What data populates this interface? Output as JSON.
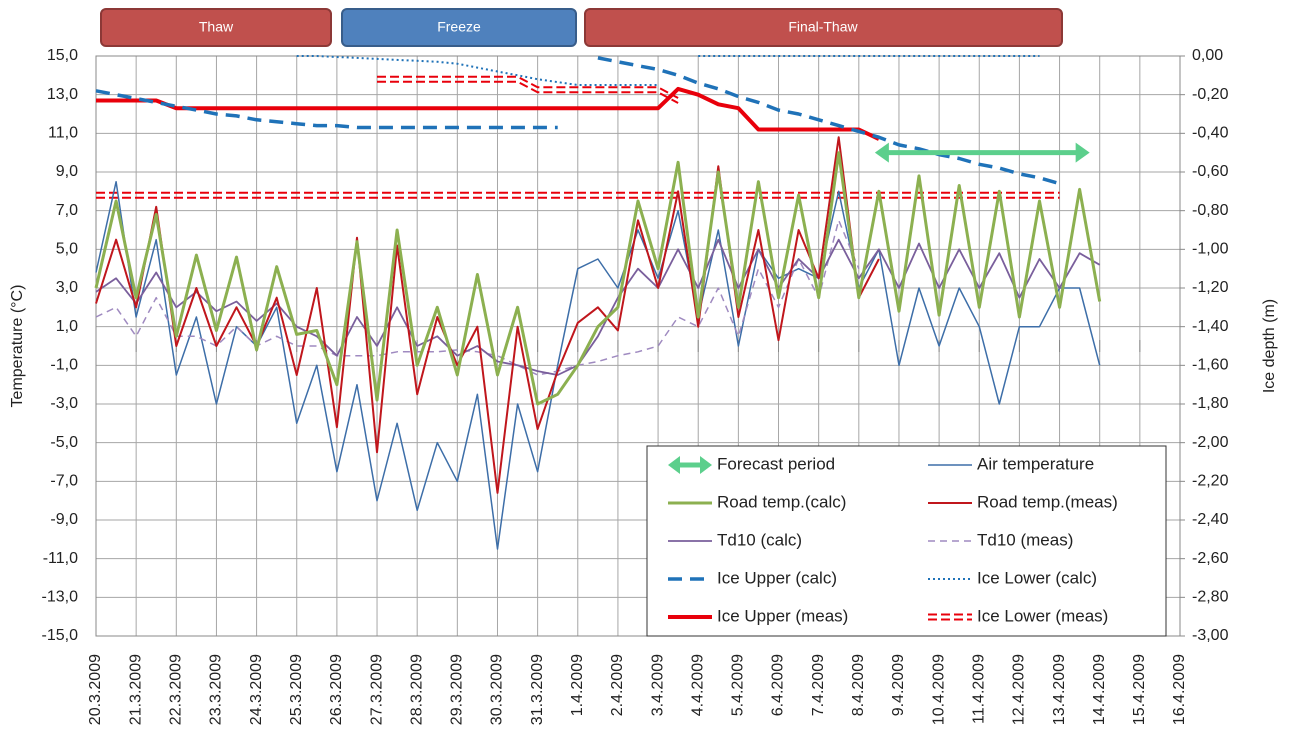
{
  "chart_data": {
    "type": "line",
    "phases": [
      "Thaw",
      "Freeze",
      "Final-Thaw"
    ],
    "y_label": "Temperature (°C)",
    "y2_label": "Ice depth (m)",
    "xlim": [
      39892,
      39919
    ],
    "xticks": [
      {
        "value": 39892,
        "label": "20.3.2009"
      },
      {
        "value": 39893,
        "label": "21.3.2009"
      },
      {
        "value": 39894,
        "label": "22.3.2009"
      },
      {
        "value": 39895,
        "label": "23.3.2009"
      },
      {
        "value": 39896,
        "label": "24.3.2009"
      },
      {
        "value": 39897,
        "label": "25.3.2009"
      },
      {
        "value": 39898,
        "label": "26.3.2009"
      },
      {
        "value": 39899,
        "label": "27.3.2009"
      },
      {
        "value": 39900,
        "label": "28.3.2009"
      },
      {
        "value": 39901,
        "label": "29.3.2009"
      },
      {
        "value": 39902,
        "label": "30.3.2009"
      },
      {
        "value": 39903,
        "label": "31.3.2009"
      },
      {
        "value": 39904,
        "label": "1.4.2009"
      },
      {
        "value": 39905,
        "label": "2.4.2009"
      },
      {
        "value": 39906,
        "label": "3.4.2009"
      },
      {
        "value": 39907,
        "label": "4.4.2009"
      },
      {
        "value": 39908,
        "label": "5.4.2009"
      },
      {
        "value": 39909,
        "label": "6.4.2009"
      },
      {
        "value": 39910,
        "label": "7.4.2009"
      },
      {
        "value": 39911,
        "label": "8.4.2009"
      },
      {
        "value": 39912,
        "label": "9.4.2009"
      },
      {
        "value": 39913,
        "label": "10.4.2009"
      },
      {
        "value": 39914,
        "label": "11.4.2009"
      },
      {
        "value": 39915,
        "label": "12.4.2009"
      },
      {
        "value": 39916,
        "label": "13.4.2009"
      },
      {
        "value": 39917,
        "label": "14.4.2009"
      },
      {
        "value": 39918,
        "label": "15.4.2009"
      },
      {
        "value": 39919,
        "label": "16.4.2009"
      }
    ],
    "ylim": [
      -15,
      15
    ],
    "yticks": [
      {
        "value": -15,
        "label": "-15,0"
      },
      {
        "value": -13,
        "label": "-13,0"
      },
      {
        "value": -11,
        "label": "-11,0"
      },
      {
        "value": -9,
        "label": "-9,0"
      },
      {
        "value": -7,
        "label": "-7,0"
      },
      {
        "value": -5,
        "label": "-5,0"
      },
      {
        "value": -3,
        "label": "-3,0"
      },
      {
        "value": -1,
        "label": "-1,0"
      },
      {
        "value": 1,
        "label": "1,0"
      },
      {
        "value": 3,
        "label": "3,0"
      },
      {
        "value": 5,
        "label": "5,0"
      },
      {
        "value": 7,
        "label": "7,0"
      },
      {
        "value": 9,
        "label": "9,0"
      },
      {
        "value": 11,
        "label": "11,0"
      },
      {
        "value": 13,
        "label": "13,0"
      },
      {
        "value": 15,
        "label": "15,0"
      }
    ],
    "y2lim": [
      -3,
      0
    ],
    "y2ticks": [
      {
        "value": 0,
        "label": "0,00"
      },
      {
        "value": -0.2,
        "label": "-0,20"
      },
      {
        "value": -0.4,
        "label": "-0,40"
      },
      {
        "value": -0.6,
        "label": "-0,60"
      },
      {
        "value": -0.8,
        "label": "-0,80"
      },
      {
        "value": -1,
        "label": "-1,00"
      },
      {
        "value": -1.2,
        "label": "-1,20"
      },
      {
        "value": -1.4,
        "label": "-1,40"
      },
      {
        "value": -1.6,
        "label": "-1,60"
      },
      {
        "value": -1.8,
        "label": "-1,80"
      },
      {
        "value": -2,
        "label": "-2,00"
      },
      {
        "value": -2.2,
        "label": "-2,20"
      },
      {
        "value": -2.4,
        "label": "-2,40"
      },
      {
        "value": -2.6,
        "label": "-2,60"
      },
      {
        "value": -2.8,
        "label": "-2,80"
      },
      {
        "value": -3,
        "label": "-3,00"
      }
    ],
    "grid": true,
    "legend": "lower-right",
    "x": [
      39892,
      39892.5,
      39893,
      39893.5,
      39894,
      39894.5,
      39895,
      39895.5,
      39896,
      39896.5,
      39897,
      39897.5,
      39898,
      39898.5,
      39899,
      39899.5,
      39900,
      39900.5,
      39901,
      39901.5,
      39902,
      39902.5,
      39903,
      39903.5,
      39904,
      39904.5,
      39905,
      39905.5,
      39906,
      39906.5,
      39907,
      39907.5,
      39908,
      39908.5,
      39909,
      39909.5,
      39910,
      39910.5,
      39911,
      39911.5,
      39912,
      39912.5,
      39913,
      39913.5,
      39914,
      39914.5,
      39915,
      39915.5,
      39916,
      39916.5,
      39917
    ],
    "series": [
      {
        "name": "Forecast period",
        "color": "#5ccf8c",
        "style": "arrow",
        "width": 5,
        "axis": "y2",
        "x": [
          39911.4,
          39916.75
        ],
        "values": [
          -0.5,
          -0.5
        ]
      },
      {
        "name": "Air temperature",
        "color": "#3d6ea8",
        "style": "solid",
        "width": 1.5,
        "values": [
          3.8,
          8.5,
          1.5,
          5.5,
          -1.5,
          1.5,
          -3.0,
          1.0,
          0.0,
          2.0,
          -4.0,
          -1.0,
          -6.5,
          -2.0,
          -8.0,
          -4.0,
          -8.5,
          -5.0,
          -7.0,
          -2.5,
          -10.5,
          -3.0,
          -6.5,
          -1.0,
          4.0,
          4.5,
          3.0,
          6.0,
          3.5,
          7.0,
          1.5,
          6.0,
          0.0,
          5.0,
          3.5,
          4.0,
          3.5,
          8.0,
          3.0,
          5.0,
          -1.0,
          3.0,
          0.0,
          3.0,
          1.0,
          -3.0,
          1.0,
          1.0,
          3.0,
          3.0,
          -1.0
        ]
      },
      {
        "name": "Road temp.(calc)",
        "color": "#8cb050",
        "style": "solid",
        "width": 3,
        "values": [
          3.0,
          7.5,
          2.5,
          6.8,
          0.5,
          4.7,
          0.8,
          4.6,
          -0.2,
          4.1,
          0.6,
          0.8,
          -2.0,
          5.4,
          -2.8,
          6.0,
          -1.0,
          2.0,
          -1.5,
          3.7,
          -1.5,
          2.0,
          -3.0,
          -2.5,
          -1.0,
          1.0,
          2.0,
          7.5,
          4.0,
          9.5,
          1.5,
          9.0,
          2.0,
          8.5,
          2.5,
          7.8,
          2.5,
          10.0,
          2.5,
          8.0,
          1.8,
          8.8,
          1.6,
          8.3,
          2.0,
          8.0,
          1.5,
          7.5,
          2.0,
          8.1,
          2.3
        ]
      },
      {
        "name": "Road temp.(meas)",
        "color": "#c0161c",
        "style": "solid",
        "width": 2,
        "values": [
          2.2,
          5.5,
          2.0,
          7.2,
          0.0,
          3.0,
          0.0,
          2.0,
          0.0,
          2.5,
          -1.5,
          3.0,
          -4.2,
          5.6,
          -5.5,
          5.2,
          -2.5,
          1.5,
          -1.0,
          1.0,
          -7.6,
          1.0,
          -4.3,
          -1.3,
          1.2,
          2.0,
          0.8,
          6.5,
          3.0,
          8.0,
          1.0,
          9.3,
          1.5,
          6.0,
          0.3,
          6.0,
          3.5,
          10.8,
          2.5,
          4.5,
          null,
          null,
          null,
          null,
          null,
          null,
          null,
          null,
          null,
          null,
          null
        ]
      },
      {
        "name": "Td10 (calc)",
        "color": "#7a5f9c",
        "style": "solid",
        "width": 1.8,
        "values": [
          2.8,
          3.5,
          2.2,
          3.8,
          2.0,
          2.8,
          1.8,
          2.3,
          1.3,
          2.2,
          1.0,
          0.5,
          -0.5,
          1.5,
          0.0,
          2.0,
          0.0,
          0.5,
          -0.5,
          0.0,
          -0.8,
          -1.0,
          -1.3,
          -1.5,
          -1.0,
          0.5,
          2.5,
          4.0,
          3.0,
          5.0,
          3.0,
          5.5,
          3.0,
          5.0,
          3.0,
          4.5,
          3.5,
          5.5,
          3.5,
          5.0,
          3.0,
          5.3,
          3.0,
          5.0,
          3.0,
          4.8,
          2.5,
          4.5,
          3.0,
          4.8,
          4.2
        ]
      },
      {
        "name": "Td10 (meas)",
        "color": "#9f8ac0",
        "style": "dashed-thin",
        "width": 1.5,
        "values": [
          1.5,
          2.0,
          0.5,
          2.5,
          0.5,
          0.5,
          0.0,
          1.0,
          0.0,
          0.5,
          0.0,
          0.0,
          -0.5,
          -0.5,
          -0.5,
          -0.3,
          -0.3,
          -0.3,
          -0.2,
          -0.3,
          -0.5,
          -1.0,
          -1.5,
          -1.3,
          -1.0,
          -0.8,
          -0.5,
          -0.3,
          0.0,
          1.5,
          1.0,
          3.0,
          0.5,
          4.0,
          2.0,
          4.5,
          2.5,
          6.5,
          4.0,
          null,
          null,
          null,
          null,
          null,
          null,
          null,
          null,
          null,
          null,
          null,
          null
        ]
      },
      {
        "name": "Ice Upper (calc)",
        "color": "#1f72b8",
        "style": "dashed",
        "width": 3.5,
        "axis": "y2",
        "values": [
          -0.18,
          -0.2,
          -0.22,
          -0.24,
          -0.26,
          -0.28,
          -0.3,
          -0.31,
          -0.33,
          -0.34,
          -0.35,
          -0.36,
          -0.36,
          -0.37,
          -0.37,
          -0.37,
          -0.37,
          -0.37,
          -0.37,
          -0.37,
          -0.37,
          -0.37,
          -0.37,
          -0.37,
          null,
          -0.01,
          -0.03,
          -0.05,
          -0.07,
          -0.1,
          -0.14,
          -0.17,
          -0.21,
          -0.24,
          -0.28,
          -0.3,
          -0.33,
          -0.36,
          -0.39,
          -0.42,
          -0.46,
          -0.48,
          -0.51,
          -0.53,
          -0.56,
          -0.58,
          -0.61,
          -0.63,
          -0.66,
          null,
          null
        ]
      },
      {
        "name": "Ice Lower (calc)",
        "color": "#1f72b8",
        "style": "dotted",
        "width": 2,
        "axis": "y2",
        "values": [
          null,
          null,
          null,
          null,
          null,
          null,
          null,
          null,
          null,
          null,
          0,
          0,
          -0.005,
          -0.01,
          -0.015,
          -0.02,
          -0.025,
          -0.03,
          -0.04,
          -0.06,
          -0.08,
          -0.1,
          -0.12,
          -0.135,
          -0.15,
          -0.15,
          -0.15,
          -0.15,
          -0.15,
          null,
          0,
          0,
          0,
          0,
          0,
          0,
          0,
          0,
          0,
          0,
          0,
          0,
          0,
          0,
          0,
          0,
          0,
          0,
          null,
          null,
          null
        ]
      },
      {
        "name": "Ice Upper (meas)",
        "color": "#e8000b",
        "style": "solid",
        "width": 4,
        "axis": "y2",
        "values": [
          -0.23,
          -0.23,
          -0.23,
          -0.23,
          -0.27,
          -0.27,
          -0.27,
          -0.27,
          -0.27,
          -0.27,
          -0.27,
          -0.27,
          -0.27,
          -0.27,
          -0.27,
          -0.27,
          -0.27,
          -0.27,
          -0.27,
          -0.27,
          -0.27,
          -0.27,
          -0.27,
          -0.27,
          -0.27,
          -0.27,
          -0.27,
          -0.27,
          -0.27,
          -0.17,
          -0.2,
          -0.25,
          -0.27,
          -0.38,
          -0.38,
          -0.38,
          -0.38,
          -0.38,
          -0.38,
          -0.43,
          null,
          null,
          null,
          null,
          null,
          null,
          null,
          null,
          null,
          null,
          null
        ]
      },
      {
        "name": "Ice Lower (meas)",
        "color": "#e8000b",
        "style": "double-dashed",
        "width": 2,
        "axis": "y2",
        "values": [
          null,
          null,
          null,
          null,
          null,
          null,
          null,
          null,
          null,
          null,
          null,
          null,
          null,
          null,
          -0.12,
          -0.12,
          -0.12,
          -0.12,
          -0.12,
          -0.12,
          -0.12,
          -0.12,
          -0.175,
          -0.175,
          -0.175,
          -0.175,
          -0.175,
          -0.175,
          -0.175,
          -0.23,
          null,
          null,
          null,
          null,
          null,
          null,
          null,
          null,
          null,
          null,
          null,
          null,
          null,
          null,
          null,
          null,
          null,
          null,
          null,
          null,
          null
        ]
      },
      {
        "color": "#e8000b",
        "style": "double-dashed",
        "width": 2,
        "axis": "y2",
        "values": [
          -0.72,
          -0.72,
          -0.72,
          -0.72,
          -0.72,
          -0.72,
          -0.72,
          -0.72,
          -0.72,
          -0.72,
          -0.72,
          -0.72,
          -0.72,
          -0.72,
          -0.72,
          -0.72,
          -0.72,
          -0.72,
          -0.72,
          -0.72,
          -0.72,
          -0.72,
          -0.72,
          -0.72,
          -0.72,
          -0.72,
          -0.72,
          -0.72,
          -0.72,
          -0.72,
          -0.72,
          -0.72,
          -0.72,
          -0.72,
          -0.72,
          -0.72,
          -0.72,
          -0.72,
          -0.72,
          -0.72,
          -0.72,
          -0.72,
          -0.72,
          -0.72,
          -0.72,
          -0.72,
          -0.72,
          -0.72,
          -0.72,
          null,
          null
        ]
      }
    ]
  }
}
